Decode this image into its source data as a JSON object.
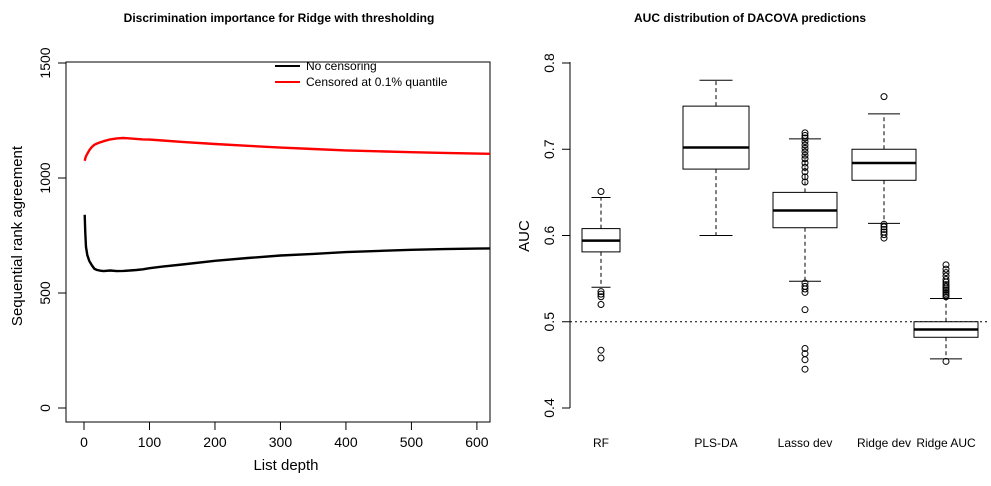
{
  "chart_data": [
    {
      "type": "line",
      "title": "Discrimination importance for Ridge with thresholding",
      "xlabel": "List depth",
      "ylabel": "Sequential rank agreement",
      "xlim": [
        0,
        620
      ],
      "ylim": [
        0,
        1500
      ],
      "xticks": [
        0,
        100,
        200,
        300,
        400,
        500,
        600
      ],
      "yticks": [
        0,
        500,
        1000,
        1500
      ],
      "legend_position": "top-right",
      "series": [
        {
          "name": "No censoring",
          "color": "#000000",
          "x": [
            1,
            2,
            3,
            5,
            8,
            12,
            16,
            20,
            25,
            30,
            40,
            50,
            60,
            70,
            80,
            90,
            100,
            120,
            150,
            200,
            250,
            300,
            350,
            400,
            450,
            500,
            550,
            600,
            620
          ],
          "y": [
            840,
            760,
            700,
            665,
            640,
            620,
            605,
            600,
            597,
            595,
            598,
            595,
            596,
            598,
            600,
            603,
            608,
            615,
            624,
            640,
            652,
            663,
            670,
            678,
            683,
            688,
            691,
            693,
            694
          ]
        },
        {
          "name": "Censored at 0.1% quantile",
          "color": "#ff0000",
          "x": [
            1,
            2,
            3,
            5,
            8,
            12,
            16,
            20,
            25,
            30,
            40,
            50,
            60,
            70,
            80,
            90,
            100,
            120,
            150,
            200,
            250,
            300,
            350,
            400,
            450,
            500,
            550,
            600,
            620
          ],
          "y": [
            1075,
            1085,
            1095,
            1105,
            1120,
            1135,
            1145,
            1150,
            1155,
            1160,
            1168,
            1172,
            1174,
            1172,
            1170,
            1168,
            1167,
            1163,
            1157,
            1148,
            1140,
            1132,
            1126,
            1120,
            1116,
            1112,
            1109,
            1106,
            1105
          ]
        }
      ]
    },
    {
      "type": "box",
      "title": "AUC distribution of DACOVA predictions",
      "xlabel": "",
      "ylabel": "AUC",
      "ylim": [
        0.4,
        0.8
      ],
      "yticks": [
        0.4,
        0.5,
        0.6,
        0.7,
        0.8
      ],
      "reference_line": 0.5,
      "categories": [
        "RF",
        "PLS-DA",
        "Lasso dev",
        "Ridge dev",
        "Ridge AUC"
      ],
      "boxes": [
        {
          "whisker_low": 0.54,
          "q1": 0.581,
          "median": 0.594,
          "q3": 0.608,
          "whisker_high": 0.644,
          "outliers": [
            0.651,
            0.535,
            0.532,
            0.529,
            0.52,
            0.467,
            0.458
          ]
        },
        {
          "whisker_low": 0.6,
          "q1": 0.677,
          "median": 0.702,
          "q3": 0.75,
          "whisker_high": 0.78,
          "outliers": []
        },
        {
          "whisker_low": 0.547,
          "q1": 0.609,
          "median": 0.629,
          "q3": 0.65,
          "whisker_high": 0.712,
          "outliers": [
            0.719,
            0.716,
            0.713,
            0.709,
            0.705,
            0.701,
            0.697,
            0.693,
            0.689,
            0.684,
            0.679,
            0.674,
            0.668,
            0.662,
            0.545,
            0.541,
            0.538,
            0.534,
            0.514,
            0.469,
            0.463,
            0.456,
            0.445
          ]
        },
        {
          "whisker_low": 0.614,
          "q1": 0.664,
          "median": 0.684,
          "q3": 0.7,
          "whisker_high": 0.741,
          "outliers": [
            0.761,
            0.613,
            0.61,
            0.607,
            0.604,
            0.601,
            0.597
          ]
        },
        {
          "whisker_low": 0.457,
          "q1": 0.482,
          "median": 0.491,
          "q3": 0.5,
          "whisker_high": 0.527,
          "outliers": [
            0.566,
            0.561,
            0.557,
            0.553,
            0.549,
            0.546,
            0.543,
            0.541,
            0.539,
            0.537,
            0.535,
            0.533,
            0.531,
            0.529,
            0.454
          ]
        }
      ]
    }
  ]
}
